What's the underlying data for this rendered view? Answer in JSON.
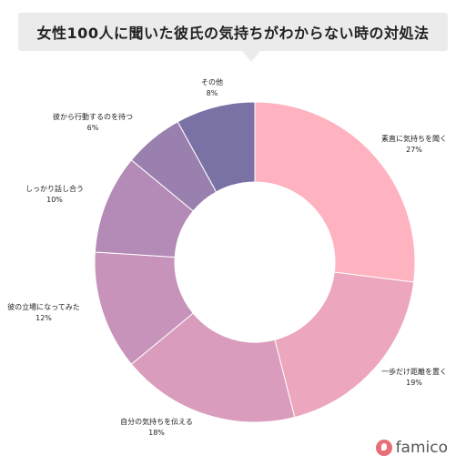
{
  "header": {
    "title": "女性100人に聞いた彼氏の気持ちがわからない時の対処法"
  },
  "brand": {
    "name": "famico",
    "color": "#e76d76"
  },
  "chart_data": {
    "type": "pie",
    "donut": true,
    "start_angle_deg": 0,
    "direction": "clockwise",
    "slices": [
      {
        "label": "素直に気持ちを聞く",
        "pct_label": "27%",
        "value": 27,
        "color": "#ffb2bf"
      },
      {
        "label": "一歩だけ距離を置く",
        "pct_label": "19%",
        "value": 19,
        "color": "#eca6bd"
      },
      {
        "label": "自分の気持ちを伝える",
        "pct_label": "18%",
        "value": 18,
        "color": "#d99cbd"
      },
      {
        "label": "彼の立場になってみた",
        "pct_label": "12%",
        "value": 12,
        "color": "#c793bb"
      },
      {
        "label": "しっかり話し合う",
        "pct_label": "10%",
        "value": 10,
        "color": "#b38bb6"
      },
      {
        "label": "彼から行動するのを待つ",
        "pct_label": "6%",
        "value": 6,
        "color": "#9a80ae"
      },
      {
        "label": "その他",
        "pct_label": "8%",
        "value": 8,
        "color": "#7a72a5"
      }
    ]
  }
}
